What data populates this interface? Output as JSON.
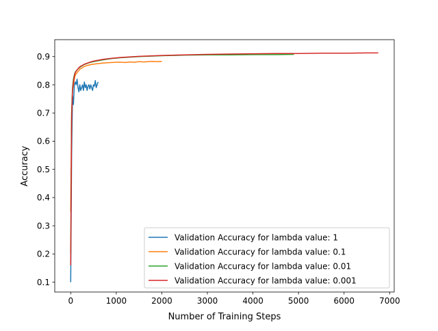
{
  "chart_data": {
    "type": "line",
    "title": "",
    "xlabel": "Number of Training Steps",
    "ylabel": "Accuracy",
    "xlim": [
      -350,
      7100
    ],
    "ylim": [
      0.065,
      0.96
    ],
    "xticks": [
      0,
      1000,
      2000,
      3000,
      4000,
      5000,
      6000,
      7000
    ],
    "yticks": [
      0.1,
      0.2,
      0.3,
      0.4,
      0.5,
      0.6,
      0.7,
      0.8,
      0.9
    ],
    "grid": false,
    "legend_position": "lower-right",
    "series": [
      {
        "name": "Validation Accuracy for lambda value: 1",
        "color": "#1f77b4",
        "x": [
          0,
          20,
          40,
          60,
          80,
          100,
          120,
          140,
          160,
          180,
          200,
          220,
          240,
          260,
          280,
          300,
          320,
          340,
          360,
          380,
          400,
          420,
          440,
          460,
          480,
          500,
          520,
          540,
          560,
          580,
          600
        ],
        "y": [
          0.1,
          0.55,
          0.76,
          0.73,
          0.8,
          0.81,
          0.8,
          0.82,
          0.79,
          0.775,
          0.8,
          0.78,
          0.79,
          0.8,
          0.78,
          0.81,
          0.79,
          0.8,
          0.78,
          0.795,
          0.8,
          0.785,
          0.8,
          0.79,
          0.78,
          0.8,
          0.795,
          0.815,
          0.79,
          0.8,
          0.81
        ]
      },
      {
        "name": "Validation Accuracy for lambda value: 0.1",
        "color": "#ff7f0e",
        "x": [
          0,
          20,
          40,
          60,
          80,
          100,
          150,
          200,
          250,
          300,
          350,
          400,
          450,
          500,
          600,
          700,
          800,
          900,
          1000,
          1100,
          1200,
          1300,
          1400,
          1500,
          1600,
          1700,
          1800,
          1900,
          2000
        ],
        "y": [
          0.35,
          0.7,
          0.78,
          0.8,
          0.82,
          0.835,
          0.845,
          0.855,
          0.86,
          0.865,
          0.868,
          0.87,
          0.872,
          0.873,
          0.875,
          0.877,
          0.878,
          0.879,
          0.88,
          0.88,
          0.879,
          0.881,
          0.88,
          0.882,
          0.881,
          0.882,
          0.883,
          0.882,
          0.883
        ]
      },
      {
        "name": "Validation Accuracy for lambda value: 0.01",
        "color": "#2ca02c",
        "x": [
          0,
          20,
          40,
          60,
          80,
          100,
          150,
          200,
          300,
          400,
          500,
          700,
          900,
          1100,
          1500,
          2000,
          2500,
          3000,
          3500,
          4000,
          4500,
          4900
        ],
        "y": [
          0.2,
          0.7,
          0.79,
          0.82,
          0.835,
          0.845,
          0.855,
          0.862,
          0.872,
          0.878,
          0.882,
          0.888,
          0.893,
          0.896,
          0.9,
          0.903,
          0.905,
          0.906,
          0.906,
          0.907,
          0.907,
          0.908
        ]
      },
      {
        "name": "Validation Accuracy for lambda value: 0.001",
        "color": "#d62728",
        "x": [
          0,
          20,
          40,
          60,
          80,
          100,
          150,
          200,
          300,
          400,
          500,
          700,
          900,
          1100,
          1500,
          2000,
          2500,
          3000,
          3500,
          4000,
          4500,
          5000,
          5500,
          6000,
          6500,
          6750
        ],
        "y": [
          0.16,
          0.68,
          0.78,
          0.81,
          0.83,
          0.843,
          0.855,
          0.864,
          0.873,
          0.879,
          0.884,
          0.89,
          0.894,
          0.897,
          0.901,
          0.904,
          0.906,
          0.908,
          0.909,
          0.91,
          0.911,
          0.911,
          0.912,
          0.912,
          0.913,
          0.913
        ]
      }
    ]
  }
}
